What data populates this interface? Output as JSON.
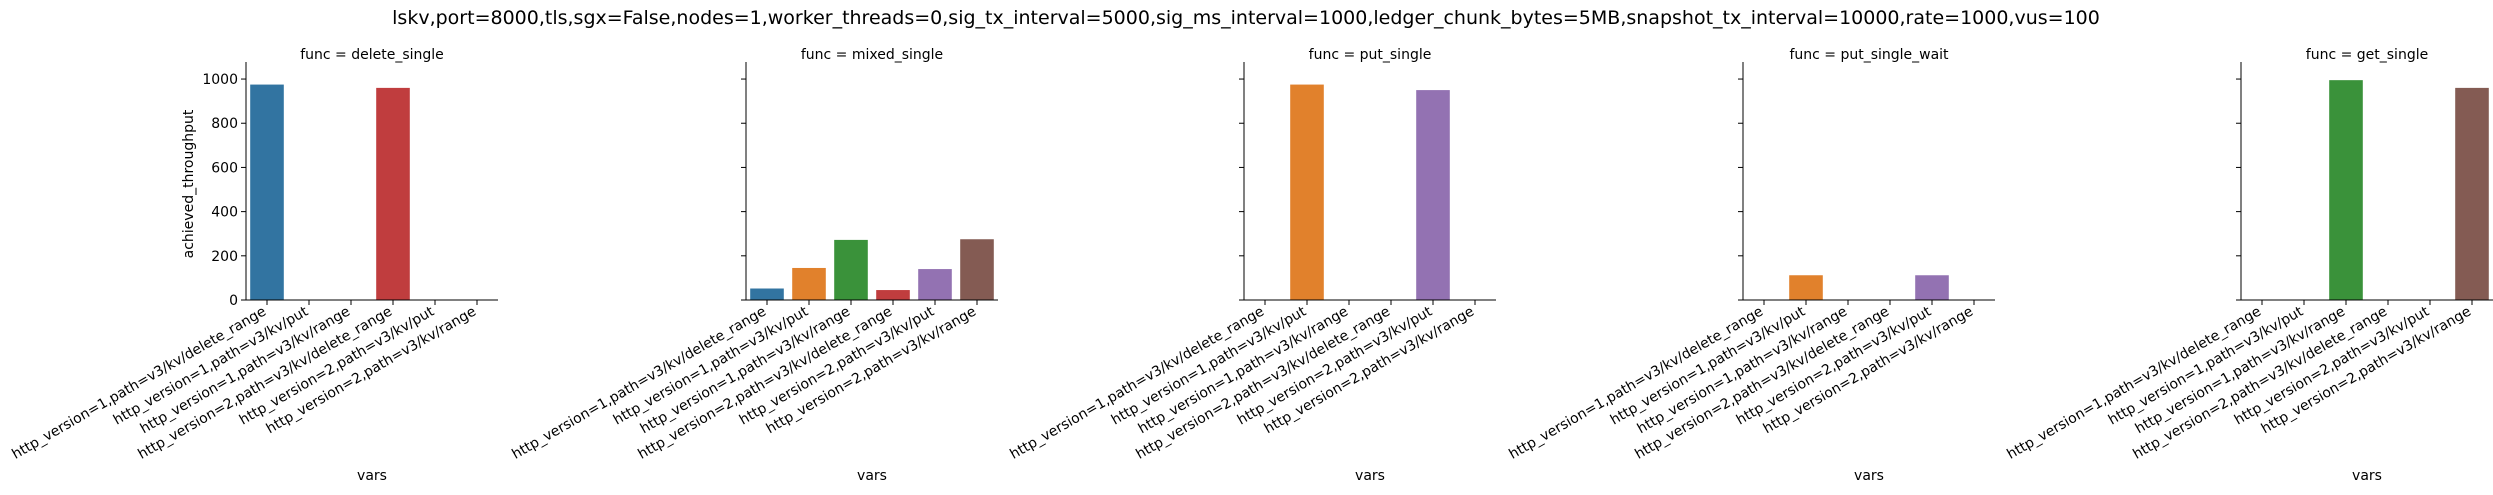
{
  "figure": {
    "suptitle": "lskv,port=8000,tls,sgx=False,nodes=1,worker_threads=0,sig_tx_interval=5000,sig_ms_interval=1000,ledger_chunk_bytes=5MB,snapshot_tx_interval=10000,rate=1000,vus=100"
  },
  "chart_data": [
    {
      "type": "bar",
      "title": "func = delete_single",
      "xlabel": "vars",
      "ylabel": "achieved_throughput",
      "ylim": [
        0,
        1050
      ],
      "yticks": [
        0,
        200,
        400,
        600,
        800,
        1000
      ],
      "categories": [
        "http_version=1,path=v3/kv/delete_range",
        "http_version=1,path=v3/kv/put",
        "http_version=1,path=v3/kv/range",
        "http_version=2,path=v3/kv/delete_range",
        "http_version=2,path=v3/kv/put",
        "http_version=2,path=v3/kv/range"
      ],
      "values": [
        975,
        null,
        null,
        960,
        null,
        null
      ],
      "colors": [
        "#3274a1",
        "#e1812c",
        "#3a923a",
        "#c03d3e",
        "#9372b2",
        "#845b53"
      ]
    },
    {
      "type": "bar",
      "title": "func = mixed_single",
      "xlabel": "vars",
      "ylabel": "",
      "ylim": [
        0,
        1050
      ],
      "yticks": [
        0,
        200,
        400,
        600,
        800,
        1000
      ],
      "categories": [
        "http_version=1,path=v3/kv/delete_range",
        "http_version=1,path=v3/kv/put",
        "http_version=1,path=v3/kv/range",
        "http_version=2,path=v3/kv/delete_range",
        "http_version=2,path=v3/kv/put",
        "http_version=2,path=v3/kv/range"
      ],
      "values": [
        52,
        145,
        272,
        45,
        140,
        275
      ],
      "colors": [
        "#3274a1",
        "#e1812c",
        "#3a923a",
        "#c03d3e",
        "#9372b2",
        "#845b53"
      ]
    },
    {
      "type": "bar",
      "title": "func = put_single",
      "xlabel": "vars",
      "ylabel": "",
      "ylim": [
        0,
        1050
      ],
      "yticks": [
        0,
        200,
        400,
        600,
        800,
        1000
      ],
      "categories": [
        "http_version=1,path=v3/kv/delete_range",
        "http_version=1,path=v3/kv/put",
        "http_version=1,path=v3/kv/range",
        "http_version=2,path=v3/kv/delete_range",
        "http_version=2,path=v3/kv/put",
        "http_version=2,path=v3/kv/range"
      ],
      "values": [
        null,
        975,
        null,
        null,
        950,
        null
      ],
      "colors": [
        "#3274a1",
        "#e1812c",
        "#3a923a",
        "#c03d3e",
        "#9372b2",
        "#845b53"
      ]
    },
    {
      "type": "bar",
      "title": "func = put_single_wait",
      "xlabel": "vars",
      "ylabel": "",
      "ylim": [
        0,
        1050
      ],
      "yticks": [
        0,
        200,
        400,
        600,
        800,
        1000
      ],
      "categories": [
        "http_version=1,path=v3/kv/delete_range",
        "http_version=1,path=v3/kv/put",
        "http_version=1,path=v3/kv/range",
        "http_version=2,path=v3/kv/delete_range",
        "http_version=2,path=v3/kv/put",
        "http_version=2,path=v3/kv/range"
      ],
      "values": [
        null,
        112,
        null,
        null,
        112,
        null
      ],
      "colors": [
        "#3274a1",
        "#e1812c",
        "#3a923a",
        "#c03d3e",
        "#9372b2",
        "#845b53"
      ]
    },
    {
      "type": "bar",
      "title": "func = get_single",
      "xlabel": "vars",
      "ylabel": "",
      "ylim": [
        0,
        1050
      ],
      "yticks": [
        0,
        200,
        400,
        600,
        800,
        1000
      ],
      "categories": [
        "http_version=1,path=v3/kv/delete_range",
        "http_version=1,path=v3/kv/put",
        "http_version=1,path=v3/kv/range",
        "http_version=2,path=v3/kv/delete_range",
        "http_version=2,path=v3/kv/put",
        "http_version=2,path=v3/kv/range"
      ],
      "values": [
        null,
        null,
        995,
        null,
        null,
        960
      ],
      "colors": [
        "#3274a1",
        "#e1812c",
        "#3a923a",
        "#c03d3e",
        "#9372b2",
        "#845b53"
      ]
    }
  ]
}
